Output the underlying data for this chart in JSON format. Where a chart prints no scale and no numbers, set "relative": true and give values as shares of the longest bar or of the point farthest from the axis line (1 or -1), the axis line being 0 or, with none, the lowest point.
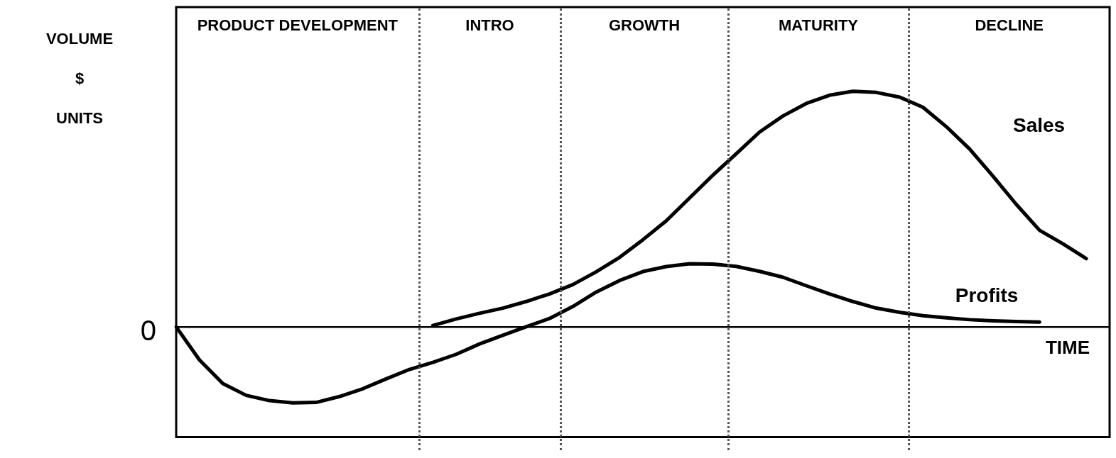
{
  "chart_data": {
    "type": "line",
    "relative": true,
    "marker": "none",
    "line_style": "solid",
    "xlabel": "TIME",
    "ylabel": "VOLUME $ UNITS",
    "annotations": [
      "PRODUCT DEVELOPMENT",
      "INTRO",
      "GROWTH",
      "MATURITY",
      "DECLINE",
      "0"
    ],
    "categories": [
      null,
      null,
      null,
      null,
      null,
      null,
      null,
      null,
      null,
      null,
      null,
      null,
      null,
      null,
      null,
      null,
      null,
      null,
      null,
      null,
      null,
      null,
      null,
      null,
      null,
      null,
      null,
      null,
      null,
      null,
      null,
      null,
      null,
      null,
      null,
      null,
      null,
      null,
      null,
      null,
      null
    ],
    "series": [
      {
        "name": "Sales",
        "color": "#000000",
        "values": [
          null,
          null,
          null,
          null,
          null,
          null,
          null,
          null,
          null,
          null,
          null,
          0.006,
          0.034,
          0.058,
          0.08,
          0.108,
          0.14,
          0.18,
          0.234,
          0.295,
          0.37,
          0.45,
          0.547,
          0.644,
          0.735,
          0.827,
          0.895,
          0.948,
          0.983,
          1,
          0.995,
          0.975,
          0.932,
          0.85,
          0.755,
          0.64,
          0.52,
          0.41,
          0.353,
          0.29,
          null
        ]
      },
      {
        "name": "Profits",
        "color": "#000000",
        "values": [
          0,
          -0.14,
          -0.24,
          -0.29,
          -0.3125,
          -0.322,
          -0.32,
          -0.295,
          -0.262,
          -0.22,
          -0.18,
          -0.15,
          -0.116,
          -0.072,
          -0.035,
          0.001,
          0.036,
          0.087,
          0.148,
          0.197,
          0.235,
          0.256,
          0.268,
          0.267,
          0.257,
          0.236,
          0.211,
          0.175,
          0.14,
          0.108,
          0.08,
          0.062,
          0.048,
          0.039,
          0.031,
          0.026,
          0.023,
          0.021,
          null,
          null,
          null
        ]
      }
    ]
  }
}
